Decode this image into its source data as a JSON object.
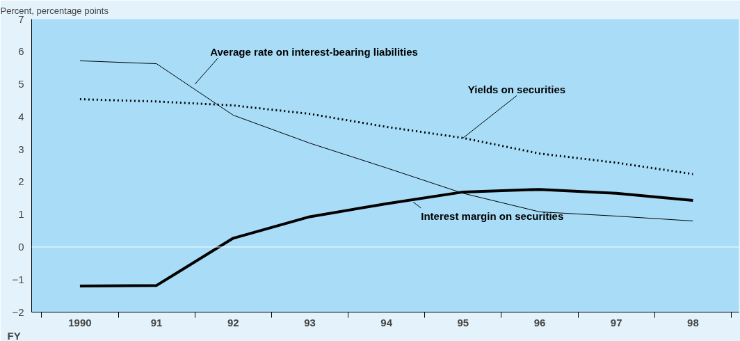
{
  "chart_data": {
    "type": "line",
    "ylabel": "Percent, percentage points",
    "xlabel": "FY",
    "categories": [
      "1990",
      "91",
      "92",
      "93",
      "94",
      "95",
      "96",
      "97",
      "98"
    ],
    "series": [
      {
        "name": "Average rate on interest-bearing liabilities",
        "color": "#000000",
        "line_style": "solid",
        "values": [
          5.72,
          5.63,
          4.05,
          3.19,
          2.43,
          1.65,
          1.08,
          0.95,
          0.8
        ]
      },
      {
        "name": "Yields on securities",
        "color": "#000000",
        "line_style": "dotted",
        "values": [
          4.54,
          4.47,
          4.35,
          4.09,
          3.69,
          3.35,
          2.87,
          2.59,
          2.24
        ]
      },
      {
        "name": "Interest margin on securities",
        "color": "#000000",
        "line_style": "solid",
        "values": [
          -1.2,
          -1.18,
          0.27,
          0.93,
          1.33,
          1.69,
          1.77,
          1.65,
          1.43
        ]
      }
    ],
    "ylim": [
      -2,
      7
    ],
    "yticks": [
      {
        "value": -2,
        "label": "−2"
      },
      {
        "value": -1,
        "label": "−1"
      },
      0,
      1,
      2,
      3,
      4,
      5,
      6,
      7
    ],
    "ref_lines": [
      {
        "axis": "y",
        "value": 0,
        "color": "#ffffff"
      }
    ],
    "grid": false,
    "marker": "none"
  }
}
